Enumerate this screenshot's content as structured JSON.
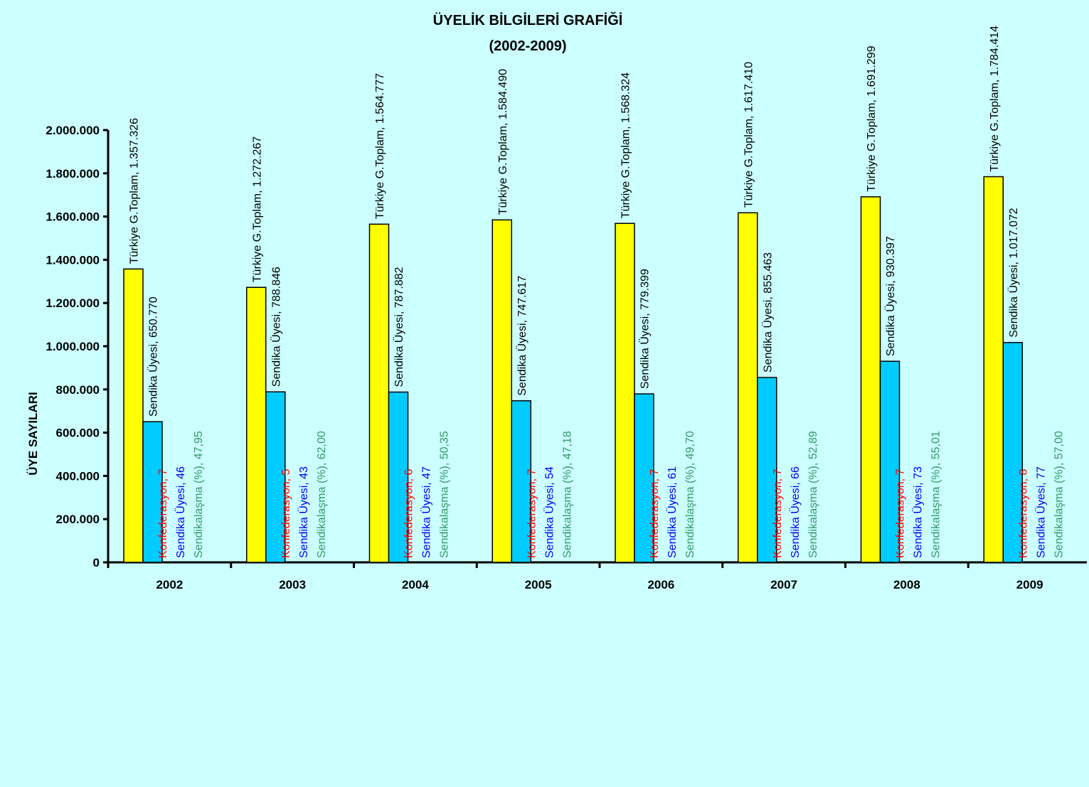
{
  "chart_data": {
    "type": "bar",
    "title": "ÜYELİK BİLGİLERİ GRAFİĞİ",
    "subtitle": "(2002-2009)",
    "ylabel": "ÜYE SAYILARI",
    "xlabel": "",
    "ylim": [
      0,
      2000000
    ],
    "y_ticks": [
      "0",
      "200.000",
      "400.000",
      "600.000",
      "800.000",
      "1.000.000",
      "1.200.000",
      "1.400.000",
      "1.600.000",
      "1.800.000",
      "2.000.000"
    ],
    "categories": [
      "2002",
      "2003",
      "2004",
      "2005",
      "2006",
      "2007",
      "2008",
      "2009"
    ],
    "series": [
      {
        "name": "Türkiye G.Toplam",
        "color": "#ffff00",
        "values": [
          1357326,
          1272267,
          1564777,
          1584490,
          1568324,
          1617410,
          1691299,
          1784414
        ],
        "labels": [
          "Türkiye G.Toplam, 1.357.326",
          "Türkiye G.Toplam, 1.272.267",
          "Türkiye G.Toplam, 1.564.777",
          "Türkiye G.Toplam, 1.584.490",
          "Türkiye G.Toplam, 1.568.324",
          "Türkiye G.Toplam, 1.617.410",
          "Türkiye G.Toplam, 1.691.299",
          "Türkiye G.Toplam, 1.784.414"
        ]
      },
      {
        "name": "Sendika Üyesi",
        "color": "#00ccff",
        "values": [
          650770,
          788846,
          787882,
          747617,
          779399,
          855463,
          930397,
          1017072
        ],
        "labels": [
          "Sendika Üyesi, 650.770",
          "Sendika Üyesi, 788.846",
          "Sendika Üyesi, 787.882",
          "Sendika Üyesi, 747.617",
          "Sendika Üyesi, 779.399",
          "Sendika Üyesi, 855.463",
          "Sendika Üyesi, 930.397",
          "Sendika Üyesi, 1.017.072"
        ]
      },
      {
        "name": "Konfederasyon",
        "color": "#ff0000",
        "values": [
          7,
          5,
          6,
          7,
          7,
          7,
          7,
          8
        ],
        "labels": [
          "Konfederasyon, 7",
          "Konfederasyon, 5",
          "Konfederasyon, 6",
          "Konfederasyon, 7",
          "Konfederasyon, 7",
          "Konfederasyon, 7",
          "Konfederasyon, 7",
          "Konfederasyon, 8"
        ]
      },
      {
        "name": "Sendika Üyesi",
        "color": "#0000ff",
        "values": [
          46,
          43,
          47,
          54,
          61,
          66,
          73,
          77
        ],
        "labels": [
          "Sendika Üyesi, 46",
          "Sendika Üyesi, 43",
          "Sendika Üyesi, 47",
          "Sendika Üyesi, 54",
          "Sendika Üyesi, 61",
          "Sendika Üyesi, 66",
          "Sendika Üyesi, 73",
          "Sendika Üyesi, 77"
        ]
      },
      {
        "name": "Sendikalaşma (%)",
        "color": "#339966",
        "values": [
          47.95,
          62.0,
          50.35,
          47.18,
          49.7,
          52.89,
          55.01,
          57.0
        ],
        "labels": [
          "Sendikalaşma (%), 47,95",
          "Sendikalaşma (%), 62,00",
          "Sendikalaşma (%), 50,35",
          "Sendikalaşma (%), 47,18",
          "Sendikalaşma (%), 49,70",
          "Sendikalaşma (%), 52,89",
          "Sendikalaşma (%), 55,01",
          "Sendikalaşma (%), 57,00"
        ]
      }
    ],
    "grid": false,
    "legend": "none"
  }
}
